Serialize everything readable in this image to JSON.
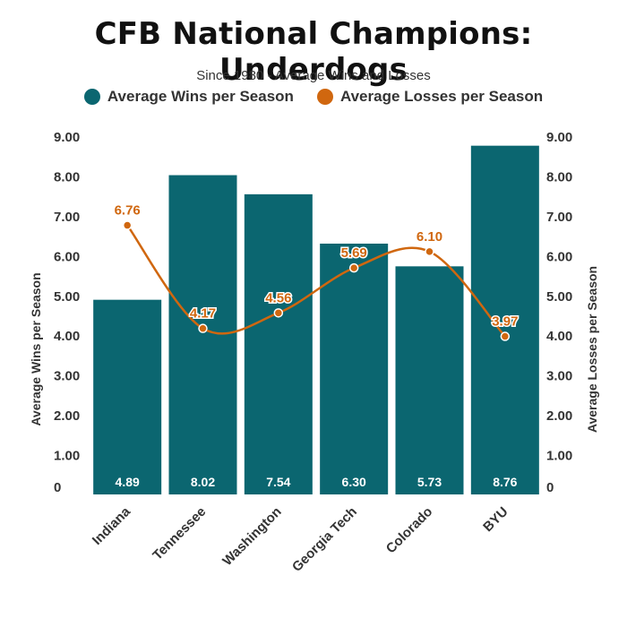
{
  "chart_data": {
    "type": "bar",
    "title": "CFB National Champions: Underdogs",
    "subtitle": "Since 1980 - Average Wins and Losses",
    "categories": [
      "Indiana",
      "Tennessee",
      "Washington",
      "Georgia Tech",
      "Colorado",
      "BYU"
    ],
    "series": [
      {
        "name": "Average Wins per Season",
        "type": "bar",
        "axis": "left",
        "color": "#0b6670",
        "values": [
          4.89,
          8.02,
          7.54,
          6.3,
          5.73,
          8.76
        ],
        "labels": [
          "4.89",
          "8.02",
          "7.54",
          "6.30",
          "5.73",
          "8.76"
        ]
      },
      {
        "name": "Average Losses per Season",
        "type": "line",
        "axis": "right",
        "color": "#d0670f",
        "values": [
          6.76,
          4.17,
          4.56,
          5.69,
          6.1,
          3.97
        ],
        "labels": [
          "6.76",
          "4.17",
          "4.56",
          "5.69",
          "6.10",
          "3.97"
        ]
      }
    ],
    "ylabel": "Average Wins per Season",
    "y2label": "Average Losses per Season",
    "ylim": [
      0,
      9
    ],
    "yticks": [
      "0",
      "1.00",
      "2.00",
      "3.00",
      "4.00",
      "5.00",
      "6.00",
      "7.00",
      "8.00",
      "9.00"
    ],
    "legend_position": "top-center",
    "grid": false
  }
}
